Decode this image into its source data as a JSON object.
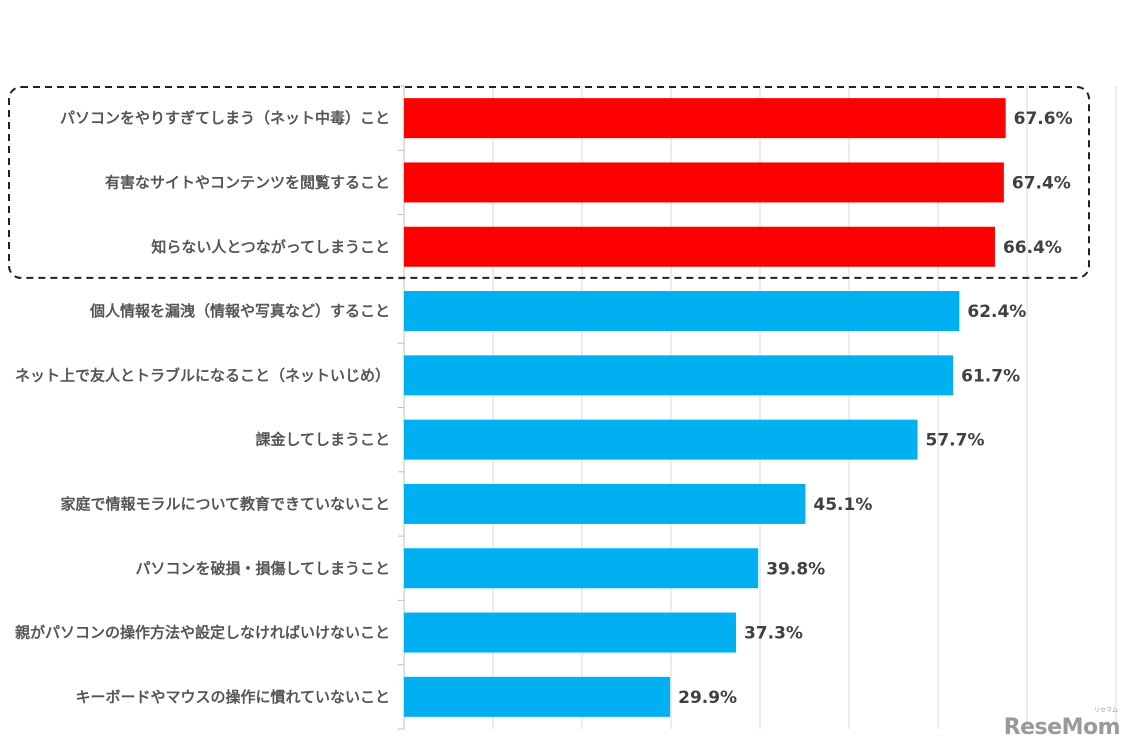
{
  "chart_data": {
    "type": "bar",
    "orientation": "horizontal",
    "categories": [
      "パソコンをやりすぎてしまう（ネット中毒）こと",
      "有害なサイトやコンテンツを閲覧すること",
      "知らない人とつながってしまうこと",
      "個人情報を漏洩（情報や写真など）すること",
      "ネット上で友人とトラブルになること（ネットいじめ）",
      "課金してしまうこと",
      "家庭で情報モラルについて教育できていないこと",
      "パソコンを破損・損傷してしまうこと",
      "親がパソコンの操作方法や設定しなければいけないこと",
      "キーボードやマウスの操作に慣れていないこと"
    ],
    "values": [
      67.6,
      67.4,
      66.4,
      62.4,
      61.7,
      57.7,
      45.1,
      39.8,
      37.3,
      29.9
    ],
    "value_labels": [
      "67.6%",
      "67.4%",
      "66.4%",
      "62.4%",
      "61.7%",
      "57.7%",
      "45.1%",
      "39.8%",
      "37.3%",
      "29.9%"
    ],
    "highlighted_count": 3,
    "xlim": [
      0,
      80
    ],
    "grid": true,
    "legend": "none",
    "colors": {
      "highlight": "#ff0000",
      "normal": "#00b0f0",
      "grid": "#d9d9d9",
      "callout": "#222222"
    }
  },
  "watermark": {
    "logo": "ReseMom",
    "sub": "リセマム"
  }
}
